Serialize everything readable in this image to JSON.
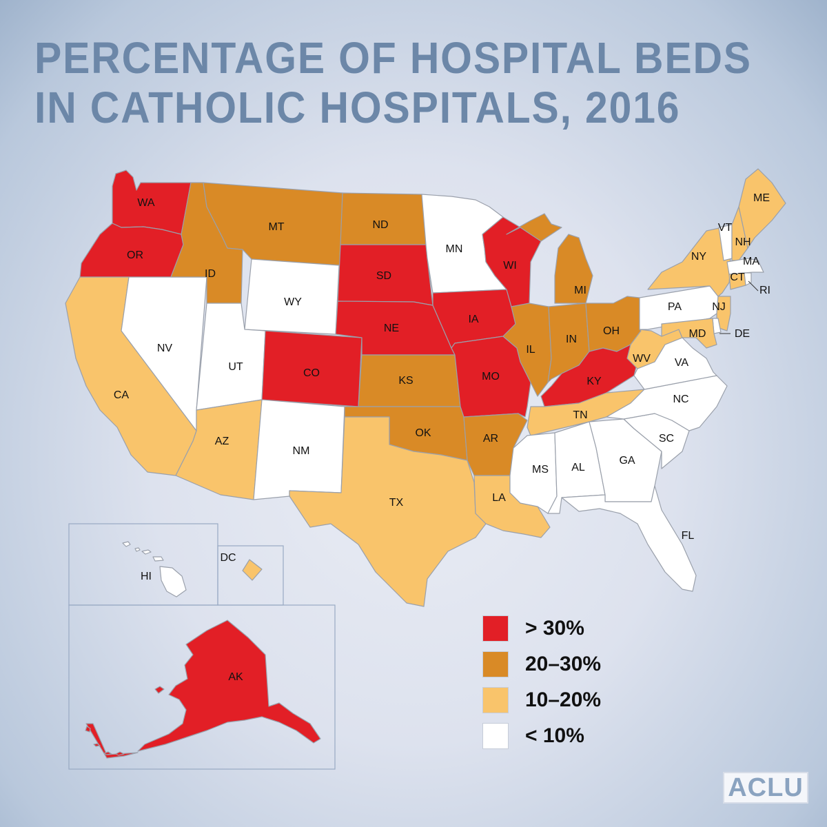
{
  "title": {
    "line1": "PERCENTAGE OF HOSPITAL BEDS",
    "line2": "IN CATHOLIC HOSPITALS, 2016"
  },
  "categories": {
    "gt30": {
      "label": "> 30%",
      "color": "#e21f26"
    },
    "20to30": {
      "label": "20–30%",
      "color": "#d98a26"
    },
    "10to20": {
      "label": "10–20%",
      "color": "#f9c46b"
    },
    "lt10": {
      "label": "< 10%",
      "color": "#ffffff"
    }
  },
  "legend": [
    {
      "category": "gt30",
      "label": "> 30%"
    },
    {
      "category": "20to30",
      "label": "20–30%"
    },
    {
      "category": "10to20",
      "label": "10–20%"
    },
    {
      "category": "lt10",
      "label": "< 10%"
    }
  ],
  "states": [
    {
      "code": "WA",
      "category": "gt30"
    },
    {
      "code": "OR",
      "category": "gt30"
    },
    {
      "code": "CA",
      "category": "10to20"
    },
    {
      "code": "NV",
      "category": "lt10"
    },
    {
      "code": "ID",
      "category": "20to30"
    },
    {
      "code": "MT",
      "category": "20to30"
    },
    {
      "code": "WY",
      "category": "lt10"
    },
    {
      "code": "UT",
      "category": "lt10"
    },
    {
      "code": "AZ",
      "category": "10to20"
    },
    {
      "code": "CO",
      "category": "gt30"
    },
    {
      "code": "NM",
      "category": "lt10"
    },
    {
      "code": "ND",
      "category": "20to30"
    },
    {
      "code": "SD",
      "category": "gt30"
    },
    {
      "code": "NE",
      "category": "gt30"
    },
    {
      "code": "KS",
      "category": "20to30"
    },
    {
      "code": "OK",
      "category": "20to30"
    },
    {
      "code": "TX",
      "category": "10to20"
    },
    {
      "code": "MN",
      "category": "lt10"
    },
    {
      "code": "IA",
      "category": "gt30"
    },
    {
      "code": "MO",
      "category": "gt30"
    },
    {
      "code": "AR",
      "category": "20to30"
    },
    {
      "code": "LA",
      "category": "10to20"
    },
    {
      "code": "WI",
      "category": "gt30"
    },
    {
      "code": "IL",
      "category": "20to30"
    },
    {
      "code": "MI",
      "category": "20to30"
    },
    {
      "code": "IN",
      "category": "20to30"
    },
    {
      "code": "OH",
      "category": "20to30"
    },
    {
      "code": "KY",
      "category": "gt30"
    },
    {
      "code": "TN",
      "category": "10to20"
    },
    {
      "code": "MS",
      "category": "lt10"
    },
    {
      "code": "AL",
      "category": "lt10"
    },
    {
      "code": "GA",
      "category": "lt10"
    },
    {
      "code": "FL",
      "category": "lt10"
    },
    {
      "code": "SC",
      "category": "lt10"
    },
    {
      "code": "NC",
      "category": "lt10"
    },
    {
      "code": "VA",
      "category": "lt10"
    },
    {
      "code": "WV",
      "category": "10to20"
    },
    {
      "code": "PA",
      "category": "lt10"
    },
    {
      "code": "NY",
      "category": "10to20"
    },
    {
      "code": "NJ",
      "category": "10to20"
    },
    {
      "code": "DE",
      "category": "lt10"
    },
    {
      "code": "MD",
      "category": "10to20"
    },
    {
      "code": "VT",
      "category": "lt10"
    },
    {
      "code": "NH",
      "category": "10to20"
    },
    {
      "code": "ME",
      "category": "10to20"
    },
    {
      "code": "MA",
      "category": "lt10"
    },
    {
      "code": "CT",
      "category": "10to20"
    },
    {
      "code": "RI",
      "category": "lt10"
    },
    {
      "code": "HI",
      "category": "lt10"
    },
    {
      "code": "DC",
      "category": "10to20"
    },
    {
      "code": "AK",
      "category": "gt30"
    }
  ],
  "logo": "ACLU"
}
